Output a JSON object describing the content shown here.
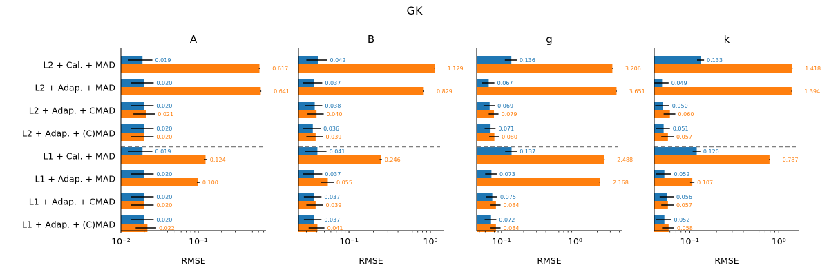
{
  "figure": {
    "title": "GK"
  },
  "chart_data": {
    "type": "bar",
    "orientation": "horizontal",
    "title": "GK",
    "xscale": "log",
    "xlabel": "RMSE",
    "categories": [
      "L2 + Cal. + MAD",
      "L2 + Adap. + MAD",
      "L2 + Adap. + CMAD",
      "L2 + Adap. + (C)MAD",
      "L1 + Cal. + MAD",
      "L1 + Adap. + MAD",
      "L1 + Adap. + CMAD",
      "L1 + Adap. + (C)MAD"
    ],
    "separator_after_category_index": 3,
    "colors": {
      "series1": "#1f77b4",
      "series2": "#ff7f0e",
      "error_bar": "#000000",
      "separator": "#808080"
    },
    "panels": [
      {
        "title": "A",
        "xlim": [
          0.01,
          0.75
        ],
        "xticks": [
          {
            "value": 0.01,
            "label": "10⁻²"
          },
          {
            "value": 0.1,
            "label": "10⁻¹"
          }
        ],
        "series": [
          {
            "values": [
              0.019,
              0.02,
              0.02,
              0.02,
              0.019,
              0.02,
              0.02,
              0.02
            ],
            "labels": [
              "0.019",
              "0.020",
              "0.020",
              "0.020",
              "0.019",
              "0.020",
              "0.020",
              "0.020"
            ],
            "errors": [
              0.0065,
              0.0065,
              0.0065,
              0.0065,
              0.0065,
              0.0065,
              0.0065,
              0.0065
            ]
          },
          {
            "values": [
              0.617,
              0.641,
              0.021,
              0.02,
              0.124,
              0.1,
              0.02,
              0.022
            ],
            "labels": [
              "0.617",
              "0.641",
              "0.021",
              "0.020",
              "0.124",
              "0.100",
              "0.020",
              "0.022"
            ],
            "errors": [
              0.01,
              0.01,
              0.0065,
              0.0065,
              0.006,
              0.004,
              0.0065,
              0.0065
            ]
          }
        ]
      },
      {
        "title": "B",
        "xlim": [
          0.024,
          1.45
        ],
        "xticks": [
          {
            "value": 0.1,
            "label": "10⁻¹"
          },
          {
            "value": 1,
            "label": "10⁰"
          }
        ],
        "series": [
          {
            "values": [
              0.042,
              0.037,
              0.038,
              0.036,
              0.041,
              0.037,
              0.037,
              0.037
            ],
            "labels": [
              "0.042",
              "0.037",
              "0.038",
              "0.036",
              "0.041",
              "0.037",
              "0.037",
              "0.037"
            ],
            "errors": [
              0.012,
              0.01,
              0.009,
              0.009,
              0.012,
              0.01,
              0.009,
              0.009
            ]
          },
          {
            "values": [
              1.129,
              0.829,
              0.04,
              0.039,
              0.246,
              0.055,
              0.039,
              0.041
            ],
            "labels": [
              "1.129",
              "0.829",
              "0.040",
              "0.039",
              "0.246",
              "0.055",
              "0.039",
              "0.041"
            ],
            "errors": [
              0.01,
              0.01,
              0.009,
              0.009,
              0.008,
              0.01,
              0.009,
              0.009
            ]
          }
        ]
      },
      {
        "title": "g",
        "xlim": [
          0.046,
          4.3
        ],
        "xticks": [
          {
            "value": 0.1,
            "label": "10⁻¹"
          },
          {
            "value": 1,
            "label": "10⁰"
          }
        ],
        "series": [
          {
            "values": [
              0.136,
              0.067,
              0.069,
              0.071,
              0.137,
              0.073,
              0.075,
              0.072
            ],
            "labels": [
              "0.136",
              "0.067",
              "0.069",
              "0.071",
              "0.137",
              "0.073",
              "0.075",
              "0.072"
            ],
            "errors": [
              0.025,
              0.013,
              0.012,
              0.012,
              0.025,
              0.013,
              0.013,
              0.013
            ]
          },
          {
            "values": [
              3.206,
              3.651,
              0.079,
              0.08,
              2.488,
              2.168,
              0.084,
              0.084
            ],
            "labels": [
              "3.206",
              "3.651",
              "0.079",
              "0.080",
              "2.488",
              "2.168",
              "0.084",
              "0.084"
            ],
            "errors": [
              0.03,
              0.03,
              0.012,
              0.012,
              0.03,
              0.03,
              0.013,
              0.013
            ]
          }
        ]
      },
      {
        "title": "k",
        "xlim": [
          0.04,
          1.7
        ],
        "xticks": [
          {
            "value": 0.1,
            "label": "10⁻¹"
          },
          {
            "value": 1,
            "label": "10⁰"
          }
        ],
        "series": [
          {
            "values": [
              0.133,
              0.049,
              0.05,
              0.051,
              0.12,
              0.052,
              0.056,
              0.052
            ],
            "labels": [
              "0.133",
              "0.049",
              "0.050",
              "0.051",
              "0.120",
              "0.052",
              "0.056",
              "0.052"
            ],
            "errors": [
              0.012,
              0.009,
              0.009,
              0.009,
              0.012,
              0.01,
              0.01,
              0.01
            ]
          },
          {
            "values": [
              1.418,
              1.394,
              0.06,
              0.057,
              0.787,
              0.107,
              0.057,
              0.058
            ],
            "labels": [
              "1.418",
              "1.394",
              "0.060",
              "0.057",
              "0.787",
              "0.107",
              "0.057",
              "0.058"
            ],
            "errors": [
              0.01,
              0.01,
              0.009,
              0.009,
              0.01,
              0.006,
              0.009,
              0.009
            ]
          }
        ]
      }
    ]
  }
}
